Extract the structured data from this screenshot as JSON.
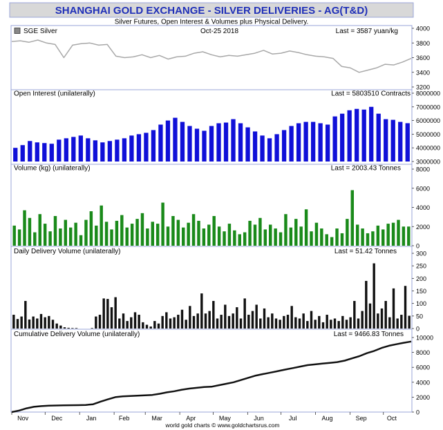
{
  "header": {
    "title": "SHANGHAI GOLD EXCHANGE - SILVER DELIVERIES - AG(T&D)",
    "subtitle": "Silver Futures, Open Interest & Volumes plus Physical Delivery.",
    "footer": "world gold charts © www.goldchartsrus.com"
  },
  "colors": {
    "title_bg": "#d8d8d8",
    "title_text": "#1f2fb8",
    "frame": "#9aa4d8",
    "price_line": "#a8a8a8",
    "open_interest_bars": "#1010d8",
    "volume_bars": "#1a8a1a",
    "delivery_bars": "#111111",
    "cumulative_line": "#111111"
  },
  "x_axis": {
    "months": [
      "Nov",
      "Dec",
      "Jan",
      "Feb",
      "Mar",
      "Apr",
      "May",
      "Jun",
      "Jul",
      "Aug",
      "Sep",
      "Oct"
    ]
  },
  "chart_data": [
    {
      "type": "line",
      "legend": "SGE Silver",
      "date_label": "Oct-25  2018",
      "last_label": "Last = 3587 yuan/kg",
      "ylim": [
        3200,
        4000
      ],
      "y_ticks": [
        "3200",
        "3400",
        "3600",
        "3800",
        "4000"
      ],
      "series": [
        {
          "values": [
            3820,
            3830,
            3810,
            3840,
            3800,
            3780,
            3600,
            3770,
            3790,
            3800,
            3770,
            3780,
            3620,
            3600,
            3610,
            3640,
            3600,
            3630,
            3580,
            3610,
            3620,
            3660,
            3680,
            3640,
            3610,
            3630,
            3620,
            3640,
            3660,
            3700,
            3650,
            3660,
            3690,
            3670,
            3640,
            3620,
            3610,
            3590,
            3480,
            3460,
            3400,
            3430,
            3460,
            3510,
            3500,
            3540,
            3590
          ]
        }
      ]
    },
    {
      "type": "bar",
      "title": "Open Interest (unilaterally)",
      "last_label": "Last = 5803510 Contracts",
      "ylim": [
        3000000,
        8000000
      ],
      "y_ticks": [
        "3000000",
        "4000000",
        "5000000",
        "6000000",
        "7000000",
        "8000000"
      ],
      "values": [
        4000000,
        4200000,
        4500000,
        4400000,
        4350000,
        4300000,
        4600000,
        4700000,
        4800000,
        4900000,
        4700000,
        4550000,
        4400000,
        4500000,
        4600000,
        4700000,
        4900000,
        5000000,
        5100000,
        5300000,
        5700000,
        6000000,
        6200000,
        5900000,
        5600000,
        5400000,
        5250000,
        5600000,
        5800000,
        5850000,
        6100000,
        5800000,
        5500000,
        5200000,
        4900000,
        4700000,
        5000000,
        5300000,
        5600000,
        5800000,
        5900000,
        5900000,
        5800000,
        5700000,
        6300000,
        6500000,
        6750000,
        6850000,
        6800000,
        7000000,
        6500000,
        6100000,
        6050000,
        5900000,
        5803510
      ]
    },
    {
      "type": "bar",
      "title": "Volume (kg) (unilaterally)",
      "last_label": "Last = 2003.43 Tonnes",
      "ylim": [
        0,
        8000
      ],
      "y_ticks": [
        "0",
        "2000",
        "4000",
        "6000",
        "8000"
      ],
      "values": [
        2100,
        1700,
        3700,
        2900,
        1400,
        3300,
        2300,
        1500,
        3100,
        1800,
        2700,
        1900,
        2400,
        1100,
        2700,
        3600,
        2100,
        4200,
        2500,
        1700,
        2600,
        3200,
        1900,
        2300,
        2800,
        3400,
        1800,
        2500,
        2300,
        4500,
        2000,
        3100,
        2700,
        1900,
        2400,
        3300,
        2600,
        1800,
        2200,
        3100,
        2000,
        1500,
        2300,
        1600,
        1200,
        1400,
        2600,
        2200,
        2900,
        1700,
        2200,
        1800,
        1400,
        3300,
        1900,
        2800,
        2000,
        3800,
        1500,
        2400,
        1800,
        1200,
        900,
        1800,
        1300,
        2800,
        5800,
        2200,
        1800,
        1300,
        1500,
        2100,
        1700,
        2300,
        2400,
        2700,
        2000,
        2003
      ]
    },
    {
      "type": "bar",
      "title": "Daily Delivery Volume (unilaterally)",
      "last_label": "Last = 51.42 Tonnes",
      "ylim": [
        0,
        300
      ],
      "y_ticks": [
        "0",
        "50",
        "100",
        "150",
        "200",
        "250",
        "300"
      ],
      "values": [
        55,
        38,
        48,
        110,
        36,
        48,
        40,
        58,
        45,
        50,
        35,
        20,
        12,
        5,
        3,
        2,
        2,
        0,
        0,
        0,
        2,
        48,
        55,
        120,
        118,
        85,
        125,
        40,
        60,
        30,
        45,
        65,
        55,
        25,
        15,
        8,
        30,
        20,
        50,
        65,
        40,
        45,
        55,
        75,
        35,
        90,
        50,
        60,
        140,
        60,
        70,
        110,
        40,
        55,
        95,
        50,
        60,
        85,
        40,
        120,
        55,
        70,
        95,
        40,
        80,
        45,
        60,
        40,
        35,
        50,
        55,
        90,
        45,
        40,
        60,
        30,
        70,
        35,
        50,
        25,
        55,
        35,
        40,
        30,
        50,
        35,
        45,
        110,
        40,
        70,
        190,
        100,
        260,
        60,
        80,
        110,
        45,
        160,
        40,
        55,
        170,
        51
      ]
    },
    {
      "type": "line",
      "title": "Cumulative Delivery Volume (unilaterally)",
      "last_label": "Last = 9466.83 Tonnes",
      "ylim": [
        0,
        10000
      ],
      "y_ticks": [
        "0",
        "2000",
        "4000",
        "6000",
        "8000",
        "10000"
      ],
      "series": [
        {
          "values": [
            0,
            200,
            500,
            700,
            800,
            850,
            880,
            900,
            920,
            930,
            950,
            1050,
            1400,
            1700,
            2000,
            2100,
            2150,
            2200,
            2250,
            2300,
            2450,
            2650,
            2800,
            3000,
            3150,
            3250,
            3350,
            3400,
            3600,
            3800,
            4000,
            4300,
            4600,
            4900,
            5100,
            5300,
            5500,
            5700,
            5900,
            6100,
            6300,
            6400,
            6500,
            6600,
            6700,
            6900,
            7200,
            7500,
            7900,
            8200,
            8600,
            8900,
            9100,
            9300,
            9466.83
          ]
        }
      ]
    }
  ]
}
